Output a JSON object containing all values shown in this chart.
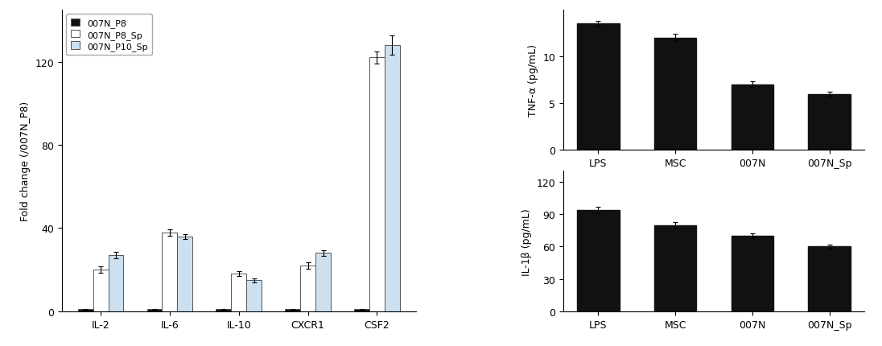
{
  "left_chart": {
    "categories": [
      "IL-2",
      "IL-6",
      "IL-10",
      "CXCR1",
      "CSF2"
    ],
    "series": {
      "007N_P8": [
        1,
        1,
        1,
        1,
        1
      ],
      "007N_P8_Sp": [
        20,
        38,
        18,
        22,
        122
      ],
      "007N_P10_Sp": [
        27,
        36,
        15,
        28,
        128
      ]
    },
    "errors": {
      "007N_P8": [
        0.2,
        0.2,
        0.2,
        0.2,
        0.3
      ],
      "007N_P8_Sp": [
        1.5,
        1.5,
        1.2,
        1.5,
        3.0
      ],
      "007N_P10_Sp": [
        1.5,
        1.2,
        1.0,
        1.5,
        4.5
      ]
    },
    "colors": {
      "007N_P8": "#111111",
      "007N_P8_Sp": "#ffffff",
      "007N_P10_Sp": "#cce0f0"
    },
    "ylabel": "Fold change (/007N_P8)",
    "ylim": [
      0,
      145
    ],
    "yticks": [
      0,
      40,
      80,
      120
    ],
    "legend_labels": [
      "007N_P8",
      "007N_P8_Sp",
      "007N_P10_Sp"
    ]
  },
  "top_right_chart": {
    "categories": [
      "LPS",
      "MSC",
      "007N",
      "007N_Sp"
    ],
    "values": [
      13.5,
      12.0,
      7.0,
      6.0
    ],
    "errors": [
      0.3,
      0.4,
      0.3,
      0.2
    ],
    "bar_color": "#111111",
    "ylabel": "TNF-α (pg/mL)",
    "ylim": [
      0,
      15
    ],
    "yticks": [
      0,
      5,
      10
    ]
  },
  "bottom_right_chart": {
    "categories": [
      "LPS",
      "MSC",
      "007N",
      "007N_Sp"
    ],
    "values": [
      94,
      80,
      70,
      60
    ],
    "errors": [
      3.0,
      2.5,
      2.5,
      2.0
    ],
    "bar_color": "#111111",
    "ylabel": "IL-1β (pg/mL)",
    "ylim": [
      0,
      130
    ],
    "yticks": [
      0,
      30,
      60,
      90,
      120
    ]
  },
  "background_color": "#ffffff",
  "bar_width": 0.22,
  "edgecolor": "#555555",
  "fontsize": 9,
  "fig_width": 10.96,
  "fig_height": 4.31
}
